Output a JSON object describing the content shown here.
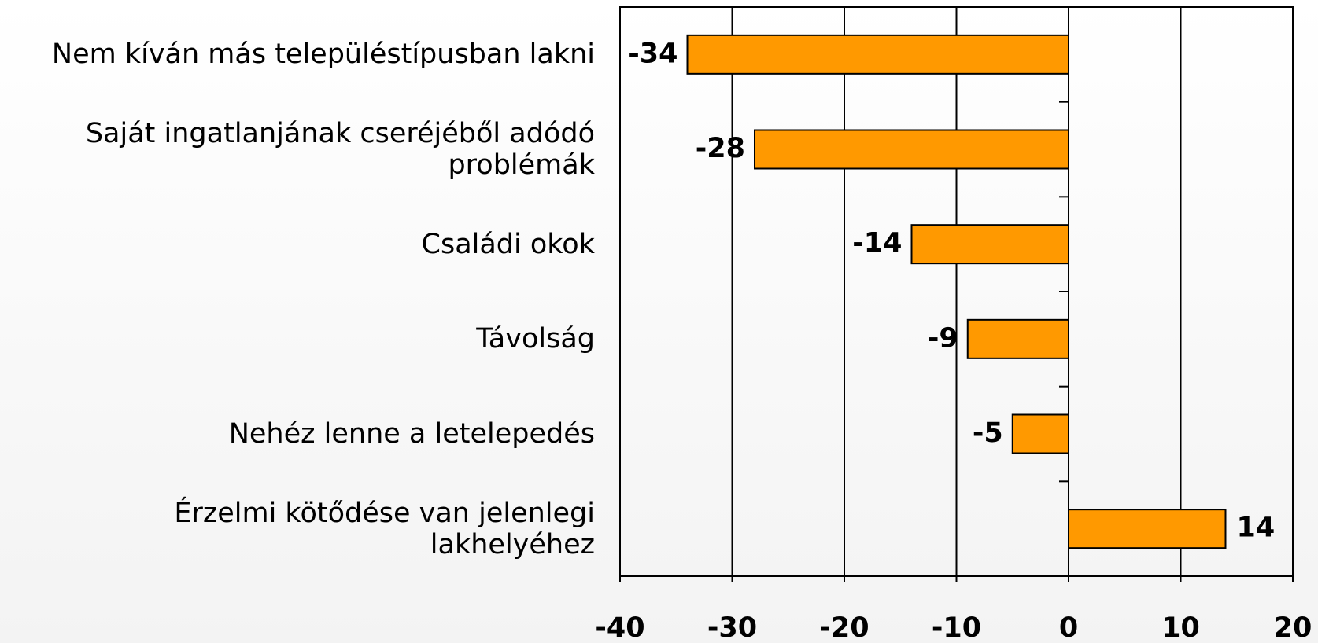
{
  "chart_data": {
    "type": "bar",
    "orientation": "horizontal",
    "categories": [
      "Nem kíván más településtípusban lakni",
      "Saját ingatlanjának cseréjéből adódó problémák",
      "Családi okok",
      "Távolság",
      "Nehéz lenne a letelepedés",
      "Érzelmi kötődése van jelenlegi lakhelyéhez"
    ],
    "values": [
      -34,
      -28,
      -14,
      -9,
      -5,
      14
    ],
    "color": "#ff9900",
    "xlim": [
      -40,
      20
    ],
    "xticks": [
      -40,
      -30,
      -20,
      -10,
      0,
      10,
      20
    ],
    "grid": true
  }
}
